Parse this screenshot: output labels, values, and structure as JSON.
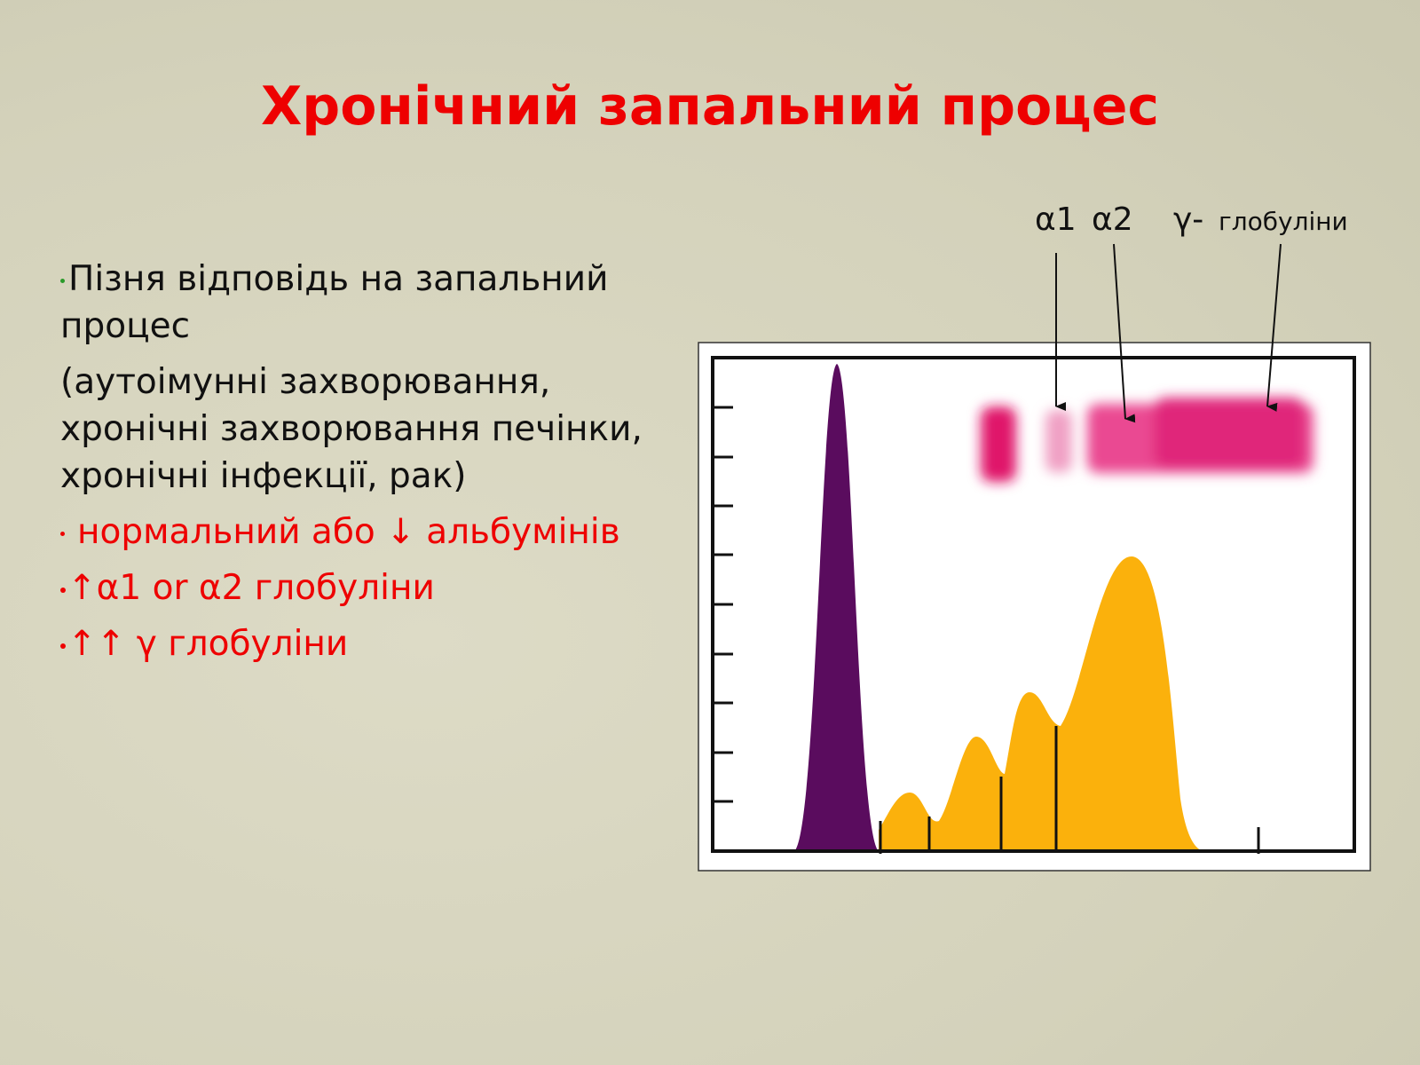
{
  "title": "Хронічний запальний процес",
  "bullets": [
    "Пізня відповідь на запальний процес",
    "(аутоімунні захворювання, хронічні захворювання печінки, хронічні інфекції, рак)",
    "нормальний або ↓ альбумінів",
    "↑α1 or α2 глобуліни",
    "↑↑ γ глобуліни"
  ],
  "figure": {
    "labels": [
      "α1",
      "α2",
      "γ-",
      "глобуліни"
    ]
  }
}
